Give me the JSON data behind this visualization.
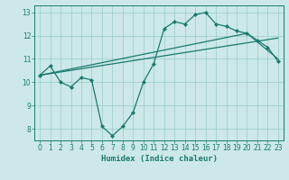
{
  "xlabel": "Humidex (Indice chaleur)",
  "xlim": [
    -0.5,
    23.5
  ],
  "ylim": [
    7.5,
    13.3
  ],
  "yticks": [
    8,
    9,
    10,
    11,
    12,
    13
  ],
  "xticks": [
    0,
    1,
    2,
    3,
    4,
    5,
    6,
    7,
    8,
    9,
    10,
    11,
    12,
    13,
    14,
    15,
    16,
    17,
    18,
    19,
    20,
    21,
    22,
    23
  ],
  "bg_color": "#cce8e8",
  "line_color": "#1a7a6e",
  "grid_color": "#99cccc",
  "line1_x": [
    0,
    1,
    2,
    3,
    4,
    5,
    6,
    7,
    8,
    9,
    10,
    11,
    12,
    13,
    14,
    15,
    16,
    17,
    18,
    19,
    20,
    21,
    22,
    23
  ],
  "line1_y": [
    10.3,
    10.7,
    10.0,
    9.8,
    10.2,
    10.1,
    8.1,
    7.7,
    8.1,
    8.7,
    10.0,
    10.8,
    12.3,
    12.6,
    12.5,
    12.9,
    13.0,
    12.5,
    12.4,
    12.2,
    12.1,
    11.8,
    11.5,
    10.9
  ],
  "line2_x": [
    0,
    23
  ],
  "line2_y": [
    10.3,
    11.9
  ],
  "line3_x": [
    0,
    20,
    23
  ],
  "line3_y": [
    10.3,
    12.1,
    11.0
  ],
  "marker_style": "D",
  "marker_size": 2.0,
  "linewidth": 0.9,
  "tick_fontsize": 5.5,
  "xlabel_fontsize": 6.5
}
